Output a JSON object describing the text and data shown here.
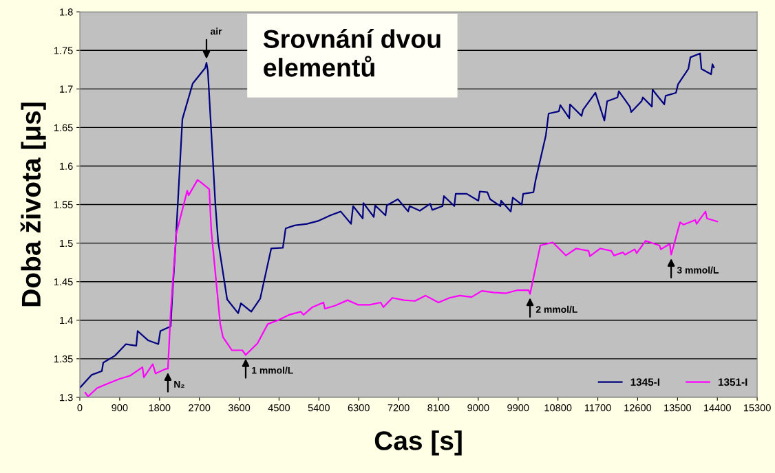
{
  "chart_data": {
    "type": "line",
    "title": "Srovnání dvou elementů",
    "xlabel": "Cas [s]",
    "ylabel": "Doba života [μs]",
    "xlim": [
      0,
      15300
    ],
    "xticks": [
      0,
      900,
      1800,
      2700,
      3600,
      4500,
      5400,
      6300,
      7200,
      8100,
      9000,
      9900,
      10800,
      11700,
      12600,
      13500,
      14400,
      15300
    ],
    "ylim": [
      1.3,
      1.8
    ],
    "yticks": [
      1.3,
      1.35,
      1.4,
      1.45,
      1.5,
      1.55,
      1.6,
      1.65,
      1.7,
      1.75,
      1.8
    ],
    "grid": "y",
    "legend": "bottom right",
    "marker": "none",
    "line_style": "solid",
    "annotations": [
      {
        "text": "air",
        "x": 2861,
        "y": 1.734
      },
      {
        "text": "N₂",
        "x": 1990,
        "y": 1.337
      },
      {
        "text": "1 mmol/L",
        "x": 3747,
        "y": 1.355
      },
      {
        "text": "2 mmol/L",
        "x": 10169,
        "y": 1.434
      },
      {
        "text": "3 mmol/L",
        "x": 13357,
        "y": 1.485
      }
    ],
    "series": [
      {
        "name": "1345-I",
        "color": "#000080",
        "x": [
          11,
          264,
          498,
          529,
          793,
          1042,
          1275,
          1306,
          1539,
          1773,
          1819,
          2052,
          2084,
          2161,
          2317,
          2550,
          2830,
          2861,
          2892,
          3063,
          3125,
          3328,
          3576,
          3639,
          3872,
          4074,
          4323,
          4587,
          4649,
          4851,
          5131,
          5396,
          5660,
          5893,
          6126,
          6173,
          6391,
          6406,
          6640,
          6671,
          6904,
          6935,
          7184,
          7417,
          7448,
          7681,
          7914,
          7961,
          8194,
          8225,
          8459,
          8490,
          8739,
          9003,
          9034,
          9205,
          9267,
          9501,
          9516,
          9734,
          9780,
          9983,
          10014,
          10247,
          10293,
          10527,
          10589,
          10822,
          10853,
          11056,
          11071,
          11335,
          11367,
          11646,
          11849,
          11911,
          12144,
          12175,
          12424,
          12455,
          12688,
          12719,
          12922,
          12937,
          13201,
          13232,
          13466,
          13512,
          13746,
          13792,
          14010,
          14041,
          14259,
          14290,
          14321
        ],
        "values": [
          1.313,
          1.329,
          1.334,
          1.345,
          1.354,
          1.369,
          1.367,
          1.386,
          1.374,
          1.369,
          1.386,
          1.392,
          1.427,
          1.496,
          1.661,
          1.707,
          1.727,
          1.734,
          1.723,
          1.549,
          1.502,
          1.427,
          1.409,
          1.422,
          1.411,
          1.428,
          1.493,
          1.494,
          1.519,
          1.523,
          1.525,
          1.529,
          1.536,
          1.541,
          1.525,
          1.548,
          1.532,
          1.552,
          1.534,
          1.549,
          1.536,
          1.549,
          1.557,
          1.541,
          1.548,
          1.542,
          1.551,
          1.543,
          1.548,
          1.561,
          1.548,
          1.564,
          1.564,
          1.555,
          1.567,
          1.566,
          1.557,
          1.548,
          1.555,
          1.541,
          1.559,
          1.55,
          1.564,
          1.566,
          1.581,
          1.64,
          1.668,
          1.671,
          1.679,
          1.662,
          1.68,
          1.665,
          1.673,
          1.695,
          1.659,
          1.684,
          1.689,
          1.697,
          1.677,
          1.67,
          1.684,
          1.689,
          1.677,
          1.699,
          1.68,
          1.691,
          1.695,
          1.706,
          1.726,
          1.741,
          1.746,
          1.726,
          1.719,
          1.732,
          1.728
        ]
      },
      {
        "name": "1351-I",
        "color": "#ff00ff",
        "x": [
          124,
          187,
          389,
          638,
          902,
          1135,
          1415,
          1446,
          1648,
          1710,
          1943,
          1990,
          2052,
          2177,
          2426,
          2457,
          2659,
          2752,
          2923,
          2970,
          3172,
          3234,
          3436,
          3670,
          3747,
          4012,
          4245,
          4478,
          4727,
          4991,
          5053,
          5256,
          5504,
          5535,
          5769,
          6049,
          6282,
          6546,
          6795,
          6857,
          7059,
          7324,
          7572,
          7806,
          8101,
          8350,
          8583,
          8847,
          9081,
          9345,
          9625,
          9889,
          10138,
          10169,
          10402,
          10682,
          10978,
          11211,
          11491,
          11522,
          11755,
          12004,
          12066,
          12268,
          12315,
          12533,
          12579,
          12781,
          13092,
          13123,
          13326,
          13357,
          13559,
          13637,
          13901,
          13932,
          14134,
          14165,
          14399
        ],
        "values": [
          1.306,
          1.301,
          1.312,
          1.318,
          1.324,
          1.328,
          1.339,
          1.326,
          1.343,
          1.331,
          1.337,
          1.337,
          1.41,
          1.512,
          1.568,
          1.562,
          1.582,
          1.578,
          1.57,
          1.516,
          1.395,
          1.378,
          1.361,
          1.361,
          1.355,
          1.37,
          1.395,
          1.4,
          1.407,
          1.411,
          1.407,
          1.417,
          1.423,
          1.415,
          1.419,
          1.426,
          1.42,
          1.42,
          1.423,
          1.417,
          1.429,
          1.426,
          1.425,
          1.432,
          1.423,
          1.429,
          1.432,
          1.43,
          1.438,
          1.436,
          1.435,
          1.439,
          1.439,
          1.434,
          1.497,
          1.501,
          1.484,
          1.493,
          1.49,
          1.483,
          1.493,
          1.49,
          1.484,
          1.488,
          1.485,
          1.492,
          1.487,
          1.503,
          1.497,
          1.492,
          1.499,
          1.485,
          1.527,
          1.524,
          1.53,
          1.525,
          1.541,
          1.532,
          1.528
        ]
      }
    ]
  }
}
